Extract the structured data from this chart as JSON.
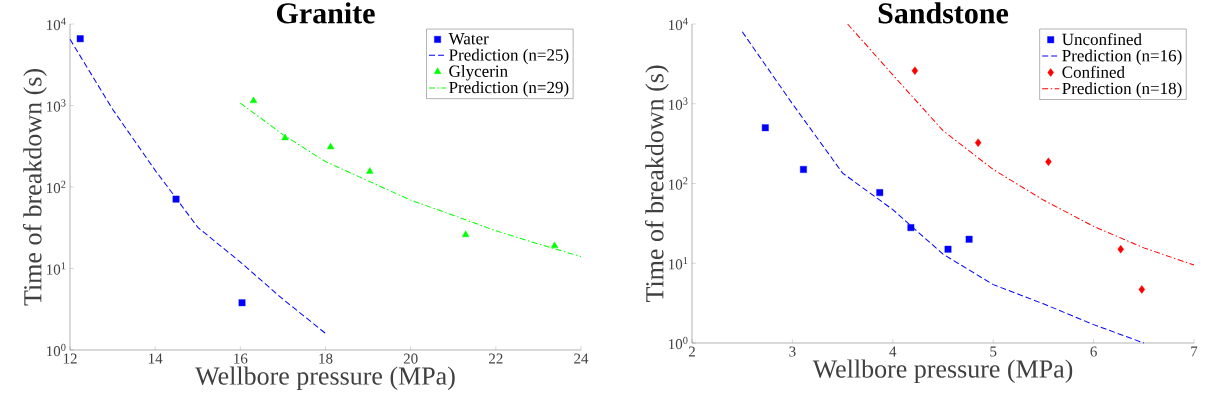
{
  "chart_data": [
    {
      "type": "scatter",
      "title": "Granite",
      "xlabel": "Wellbore pressure (MPa)",
      "ylabel": "Time of breakdown (s)",
      "log": "y",
      "legend": "top right",
      "grid": false,
      "xlim": [
        12,
        24
      ],
      "xticks": [
        12,
        14,
        16,
        18,
        20,
        22,
        24
      ],
      "ylim": [
        1,
        10000
      ],
      "yticks": [
        {
          "value": 1,
          "label": "10$^{0}$"
        },
        {
          "value": 10,
          "label": "10$^{1}$"
        },
        {
          "value": 100,
          "label": "10$^{2}$"
        },
        {
          "value": 1000,
          "label": "10$^{3}$"
        },
        {
          "value": 10000,
          "label": "10$^{4}$"
        }
      ],
      "series": [
        {
          "name": "Water",
          "marker": "square",
          "color": "#0000ff",
          "x": [
            12.24,
            14.49,
            16.04
          ],
          "values": [
            6600,
            71,
            3.8
          ]
        },
        {
          "name": "Prediction (n=25)",
          "type": "line",
          "line_style": "dashed",
          "marker": "none",
          "color": "#0000ff",
          "x": [
            12,
            13,
            14,
            14.5,
            15,
            16,
            17,
            18
          ],
          "values": [
            6500,
            900,
            160,
            72,
            32,
            12,
            4.2,
            1.6
          ]
        },
        {
          "name": "Glycerin",
          "marker": "triangle",
          "color": "#00ff00",
          "x": [
            16.31,
            17.05,
            18.12,
            19.04,
            21.29,
            23.38
          ],
          "values": [
            1140,
            400,
            310,
            155,
            26,
            19
          ]
        },
        {
          "name": "Prediction (n=29)",
          "type": "line",
          "line_style": "dashdot",
          "marker": "none",
          "color": "#00ff00",
          "x": [
            16,
            17,
            18,
            19,
            20,
            21,
            22,
            23,
            24
          ],
          "values": [
            1070,
            440,
            205,
            119,
            69,
            45,
            29,
            20,
            14
          ]
        }
      ]
    },
    {
      "type": "scatter",
      "title": "Sandstone",
      "xlabel": "Wellbore pressure (MPa)",
      "ylabel": "Time of breakdown (s)",
      "log": "y",
      "legend": "top right",
      "grid": false,
      "xlim": [
        2,
        7
      ],
      "xticks": [
        2,
        3,
        4,
        5,
        6,
        7
      ],
      "ylim": [
        1,
        10000
      ],
      "yticks": [
        {
          "value": 1,
          "label": "10$^{0}$"
        },
        {
          "value": 10,
          "label": "10$^{1}$"
        },
        {
          "value": 100,
          "label": "10$^{2}$"
        },
        {
          "value": 1000,
          "label": "10$^{3}$"
        },
        {
          "value": 10000,
          "label": "10$^{4}$"
        }
      ],
      "series": [
        {
          "name": "Unconfined",
          "marker": "square",
          "color": "#0000ff",
          "x": [
            2.73,
            3.11,
            3.87,
            4.18,
            4.55,
            4.76
          ],
          "values": [
            500,
            150,
            77,
            28,
            15,
            20
          ]
        },
        {
          "name": "Prediction (n=16)",
          "type": "line",
          "line_style": "dashed",
          "marker": "none",
          "color": "#0000ff",
          "x": [
            2.5,
            3,
            3.5,
            4,
            4.5,
            5,
            5.5,
            6,
            6.5
          ],
          "values": [
            8000,
            1000,
            135,
            47,
            13,
            5.4,
            3.1,
            1.7,
            1
          ]
        },
        {
          "name": "Confined",
          "marker": "diamond",
          "color": "#ff0000",
          "x": [
            4.22,
            4.85,
            5.55,
            6.27,
            6.48
          ],
          "values": [
            2600,
            325,
            187,
            15,
            4.7
          ]
        },
        {
          "name": "Prediction (n=18)",
          "type": "line",
          "line_style": "dashdot",
          "marker": "none",
          "color": "#ff0000",
          "x": [
            3.55,
            4,
            4.5,
            5,
            5.5,
            6,
            6.5,
            7
          ],
          "values": [
            10000,
            2300,
            460,
            150,
            62,
            29,
            15.6,
            9.5
          ]
        }
      ]
    }
  ]
}
